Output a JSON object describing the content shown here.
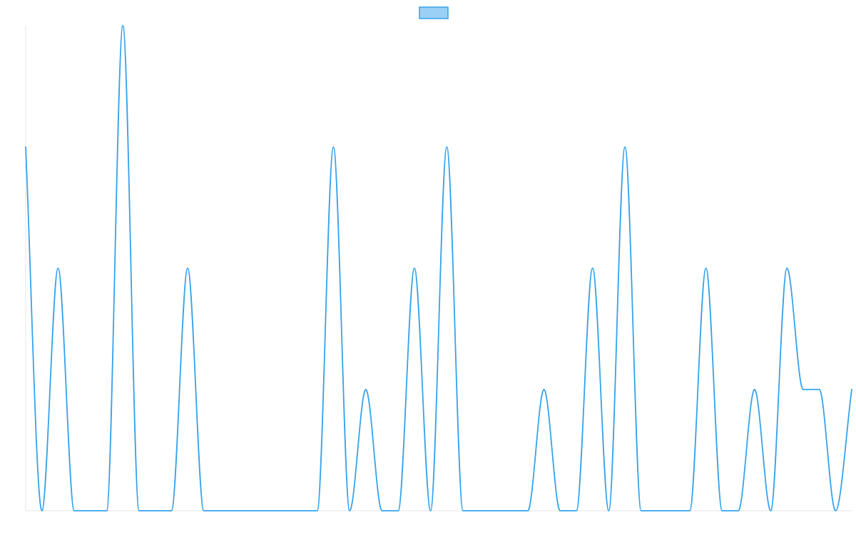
{
  "chart_data": {
    "type": "line",
    "title": "",
    "xlabel": "",
    "ylabel": "",
    "ylim": [
      0,
      4
    ],
    "grid": false,
    "legend": {
      "placement": "top-center",
      "entries": [
        {
          "label": "",
          "color": "#36a2eb",
          "fill": "#9ad0f5"
        }
      ]
    },
    "x": [
      0,
      1,
      2,
      3,
      4,
      5,
      6,
      7,
      8,
      9,
      10,
      11,
      12,
      13,
      14,
      15,
      16,
      17,
      18,
      19,
      20,
      21,
      22,
      23,
      24,
      25,
      26,
      27,
      28,
      29,
      30,
      31,
      32,
      33,
      34,
      35,
      36,
      37,
      38,
      39,
      40,
      41,
      42,
      43,
      44,
      45,
      46,
      47,
      48,
      49,
      50,
      51
    ],
    "series": [
      {
        "color": "#36a2eb",
        "values": [
          3,
          0,
          2,
          0,
          0,
          0,
          4,
          0,
          0,
          0,
          2,
          0,
          0,
          0,
          0,
          0,
          0,
          0,
          0,
          3,
          0,
          1,
          0,
          0,
          2,
          0,
          3,
          0,
          0,
          0,
          0,
          0,
          1,
          0,
          0,
          2,
          0,
          3,
          0,
          0,
          0,
          0,
          2,
          0,
          0,
          1,
          0,
          2,
          1,
          1,
          0,
          1
        ]
      }
    ]
  }
}
